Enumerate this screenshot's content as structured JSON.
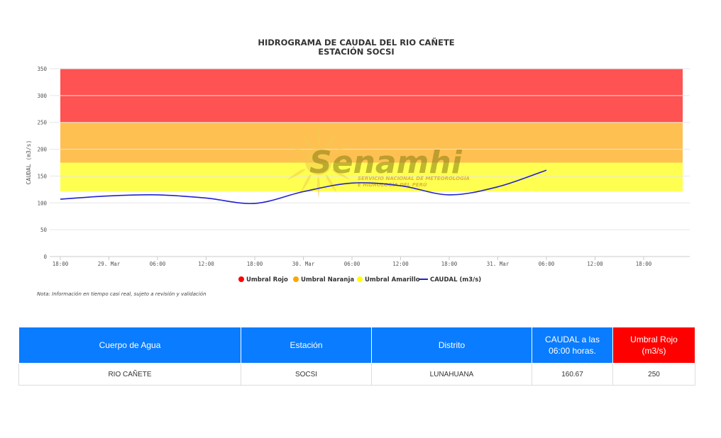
{
  "chart_data": {
    "type": "line",
    "title": "HIDROGRAMA DE CAUDAL DEL RIO CAÑETE",
    "subtitle": "ESTACIÓN SOCSI",
    "ylabel": "CAUDAL (m3/s)",
    "xlabel": "",
    "ylim": [
      0,
      350
    ],
    "y_ticks": [
      0,
      50,
      100,
      150,
      200,
      250,
      300,
      350
    ],
    "x_ticks": [
      "18:00",
      "29. Mar",
      "06:00",
      "12:00",
      "18:00",
      "30. Mar",
      "06:00",
      "12:00",
      "18:00",
      "31. Mar",
      "06:00",
      "12:00",
      "18:00"
    ],
    "grid": true,
    "legend_position": "bottom-center",
    "bands": [
      {
        "name": "Umbral Rojo",
        "from": 250,
        "to": 350,
        "color": "#ff5252",
        "marker": "#ff0000"
      },
      {
        "name": "Umbral Naranja",
        "from": 175,
        "to": 250,
        "color": "#ffc052",
        "marker": "#ffa500"
      },
      {
        "name": "Umbral Amarillo",
        "from": 121,
        "to": 175,
        "color": "#ffff52",
        "marker": "#ffff00"
      }
    ],
    "series": [
      {
        "name": "CAUDAL (m3/s)",
        "color": "#2222cc",
        "x_index": [
          0,
          1,
          2,
          3,
          4,
          5,
          6,
          7,
          8,
          9,
          10
        ],
        "values": [
          107,
          113,
          115,
          109,
          99,
          121,
          137,
          132,
          115,
          130,
          161
        ]
      }
    ],
    "note": "Nota: Información en tiempo casi real, sujeto a revisión y validación"
  },
  "watermark": {
    "logo_name": "senamhi-sun-logo",
    "brand": "Senamhi",
    "line1": "SERVICIO NACIONAL DE METEOROLOGÍA",
    "line2": "E HIDROLOGÍA DEL PERÚ"
  },
  "table": {
    "headers": [
      "Cuerpo de Agua",
      "Estación",
      "Distrito",
      "CAUDAL a las 06:00 horas.",
      "Umbral Rojo (m3/s)"
    ],
    "row": [
      "RIO CAÑETE",
      "SOCSI",
      "LUNAHUANA",
      "160.67",
      "250"
    ]
  }
}
